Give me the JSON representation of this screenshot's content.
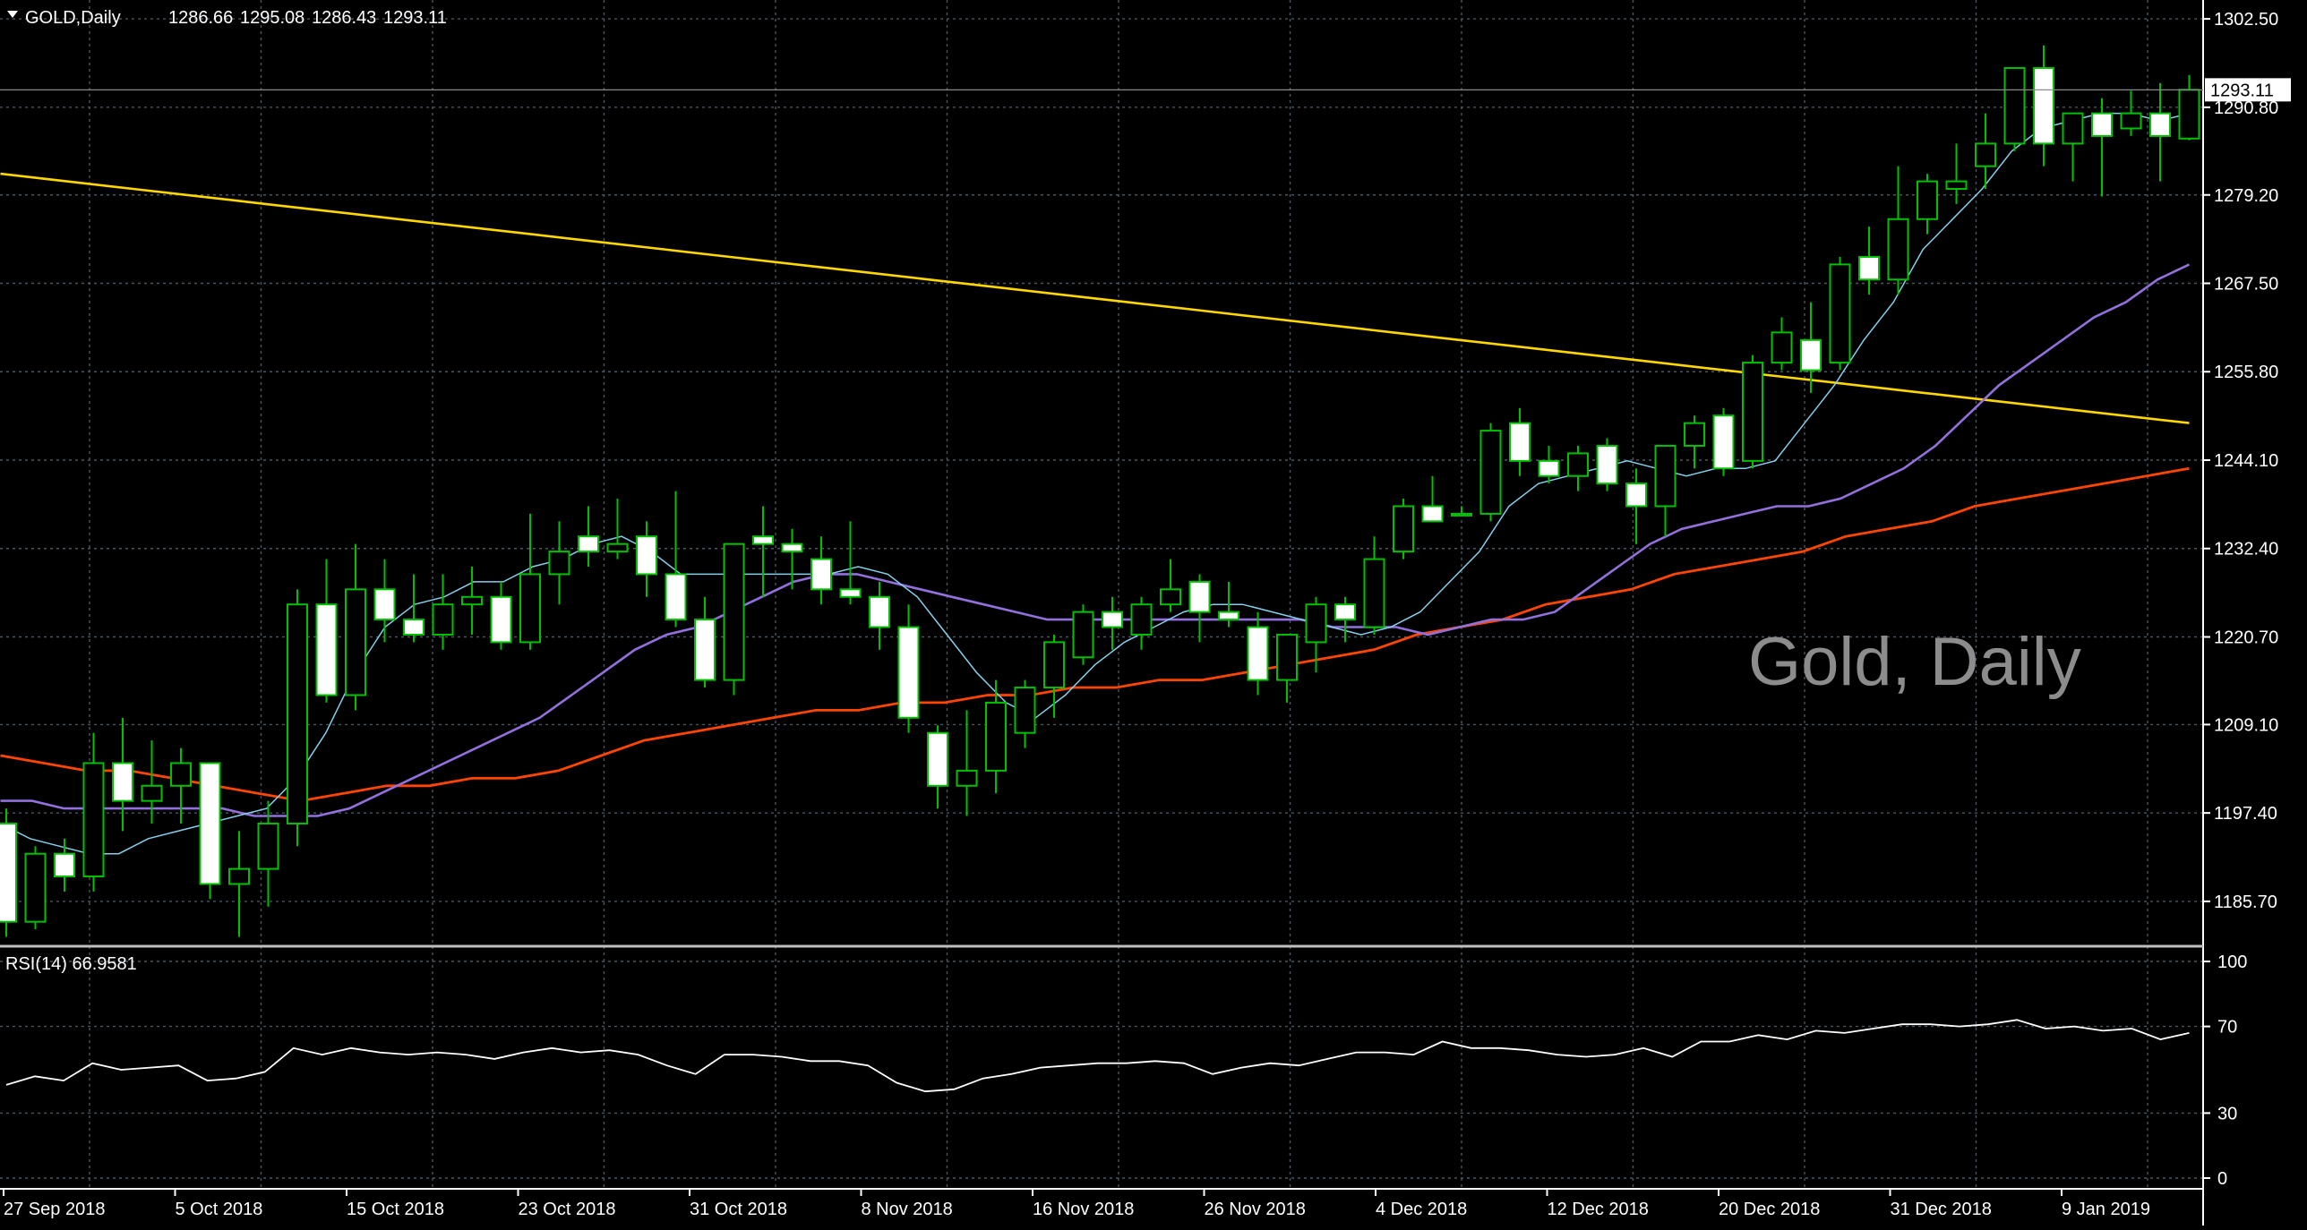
{
  "header": {
    "symbol_label": "GOLD,Daily",
    "open": "1286.66",
    "high": "1295.08",
    "low": "1286.43",
    "close": "1293.11",
    "watermark": "Gold, Daily"
  },
  "price_axis": {
    "ticks": [
      "1302.50",
      "1290.80",
      "1279.20",
      "1267.50",
      "1255.80",
      "1244.10",
      "1232.40",
      "1220.70",
      "1209.10",
      "1197.40",
      "1185.70"
    ],
    "current_price_label": "1293.11"
  },
  "rsi_panel": {
    "label": "RSI(14) 66.9581",
    "ticks": [
      "100",
      "70",
      "30",
      "0"
    ]
  },
  "time_axis": {
    "labels": [
      "27 Sep 2018",
      "5 Oct 2018",
      "15 Oct 2018",
      "23 Oct 2018",
      "31 Oct 2018",
      "8 Nov 2018",
      "16 Nov 2018",
      "26 Nov 2018",
      "4 Dec 2018",
      "12 Dec 2018",
      "20 Dec 2018",
      "31 Dec 2018",
      "9 Jan 2019"
    ]
  },
  "colors": {
    "background": "#000000",
    "grid": "#4a5560",
    "bull_candle": "#000000",
    "bear_candle": "#ffffff",
    "wick": "#00c000",
    "ma_fast": "#87ceeb",
    "ma_mid": "#9370db",
    "ma_slow": "#ff4500",
    "ma_long": "#ffd700",
    "rsi_line": "#ffffff"
  },
  "chart_data": {
    "type": "candlestick",
    "title": "GOLD,Daily",
    "ylim": [
      1180.0,
      1305.0
    ],
    "rsi_ylim": [
      0,
      100
    ],
    "candles": [
      {
        "o": 1196,
        "h": 1198,
        "l": 1181,
        "c": 1183
      },
      {
        "o": 1183,
        "h": 1193,
        "l": 1182,
        "c": 1192
      },
      {
        "o": 1192,
        "h": 1194,
        "l": 1187,
        "c": 1189
      },
      {
        "o": 1189,
        "h": 1208,
        "l": 1187,
        "c": 1204
      },
      {
        "o": 1204,
        "h": 1210,
        "l": 1195,
        "c": 1199
      },
      {
        "o": 1199,
        "h": 1207,
        "l": 1196,
        "c": 1201
      },
      {
        "o": 1201,
        "h": 1206,
        "l": 1196,
        "c": 1204
      },
      {
        "o": 1204,
        "h": 1204,
        "l": 1186,
        "c": 1188
      },
      {
        "o": 1188,
        "h": 1195,
        "l": 1181,
        "c": 1190
      },
      {
        "o": 1190,
        "h": 1199,
        "l": 1185,
        "c": 1196
      },
      {
        "o": 1196,
        "h": 1227,
        "l": 1193,
        "c": 1225
      },
      {
        "o": 1225,
        "h": 1231,
        "l": 1212,
        "c": 1213
      },
      {
        "o": 1213,
        "h": 1233,
        "l": 1211,
        "c": 1227
      },
      {
        "o": 1227,
        "h": 1231,
        "l": 1220,
        "c": 1223
      },
      {
        "o": 1223,
        "h": 1229,
        "l": 1220,
        "c": 1221
      },
      {
        "o": 1221,
        "h": 1229,
        "l": 1219,
        "c": 1225
      },
      {
        "o": 1225,
        "h": 1230,
        "l": 1221,
        "c": 1226
      },
      {
        "o": 1226,
        "h": 1228,
        "l": 1219,
        "c": 1220
      },
      {
        "o": 1220,
        "h": 1237,
        "l": 1219,
        "c": 1229
      },
      {
        "o": 1229,
        "h": 1236,
        "l": 1225,
        "c": 1232
      },
      {
        "o": 1234,
        "h": 1238,
        "l": 1230,
        "c": 1232
      },
      {
        "o": 1232,
        "h": 1239,
        "l": 1231,
        "c": 1233
      },
      {
        "o": 1234,
        "h": 1236,
        "l": 1226,
        "c": 1229
      },
      {
        "o": 1229,
        "h": 1240,
        "l": 1222,
        "c": 1223
      },
      {
        "o": 1223,
        "h": 1226,
        "l": 1214,
        "c": 1215
      },
      {
        "o": 1215,
        "h": 1233,
        "l": 1213,
        "c": 1233
      },
      {
        "o": 1234,
        "h": 1238,
        "l": 1226,
        "c": 1233
      },
      {
        "o": 1233,
        "h": 1235,
        "l": 1227,
        "c": 1232
      },
      {
        "o": 1231,
        "h": 1234,
        "l": 1225,
        "c": 1227
      },
      {
        "o": 1227,
        "h": 1236,
        "l": 1225,
        "c": 1226
      },
      {
        "o": 1226,
        "h": 1228,
        "l": 1219,
        "c": 1222
      },
      {
        "o": 1222,
        "h": 1225,
        "l": 1208,
        "c": 1210
      },
      {
        "o": 1208,
        "h": 1209,
        "l": 1198,
        "c": 1201
      },
      {
        "o": 1201,
        "h": 1211,
        "l": 1197,
        "c": 1203
      },
      {
        "o": 1203,
        "h": 1215,
        "l": 1200,
        "c": 1212
      },
      {
        "o": 1208,
        "h": 1215,
        "l": 1206,
        "c": 1214
      },
      {
        "o": 1214,
        "h": 1221,
        "l": 1210,
        "c": 1220
      },
      {
        "o": 1218,
        "h": 1225,
        "l": 1217,
        "c": 1224
      },
      {
        "o": 1224,
        "h": 1226,
        "l": 1219,
        "c": 1222
      },
      {
        "o": 1221,
        "h": 1226,
        "l": 1219,
        "c": 1225
      },
      {
        "o": 1225,
        "h": 1231,
        "l": 1224,
        "c": 1227
      },
      {
        "o": 1228,
        "h": 1229,
        "l": 1220,
        "c": 1224
      },
      {
        "o": 1224,
        "h": 1228,
        "l": 1222,
        "c": 1223
      },
      {
        "o": 1222,
        "h": 1224,
        "l": 1213,
        "c": 1215
      },
      {
        "o": 1215,
        "h": 1221,
        "l": 1212,
        "c": 1221
      },
      {
        "o": 1220,
        "h": 1226,
        "l": 1216,
        "c": 1225
      },
      {
        "o": 1225,
        "h": 1226,
        "l": 1220,
        "c": 1223
      },
      {
        "o": 1222,
        "h": 1234,
        "l": 1221,
        "c": 1231
      },
      {
        "o": 1232,
        "h": 1239,
        "l": 1231,
        "c": 1238
      },
      {
        "o": 1238,
        "h": 1242,
        "l": 1236,
        "c": 1236
      },
      {
        "o": 1237,
        "h": 1238,
        "l": 1237,
        "c": 1237
      },
      {
        "o": 1237,
        "h": 1249,
        "l": 1236,
        "c": 1248
      },
      {
        "o": 1249,
        "h": 1251,
        "l": 1242,
        "c": 1244
      },
      {
        "o": 1244,
        "h": 1246,
        "l": 1241,
        "c": 1242
      },
      {
        "o": 1242,
        "h": 1246,
        "l": 1240,
        "c": 1245
      },
      {
        "o": 1246,
        "h": 1247,
        "l": 1240,
        "c": 1241
      },
      {
        "o": 1241,
        "h": 1243,
        "l": 1233,
        "c": 1238
      },
      {
        "o": 1238,
        "h": 1246,
        "l": 1234,
        "c": 1246
      },
      {
        "o": 1246,
        "h": 1250,
        "l": 1243,
        "c": 1249
      },
      {
        "o": 1250,
        "h": 1251,
        "l": 1242,
        "c": 1243
      },
      {
        "o": 1244,
        "h": 1258,
        "l": 1243,
        "c": 1257
      },
      {
        "o": 1257,
        "h": 1263,
        "l": 1256,
        "c": 1261
      },
      {
        "o": 1260,
        "h": 1265,
        "l": 1253,
        "c": 1256
      },
      {
        "o": 1257,
        "h": 1271,
        "l": 1256,
        "c": 1270
      },
      {
        "o": 1271,
        "h": 1275,
        "l": 1266,
        "c": 1268
      },
      {
        "o": 1268,
        "h": 1283,
        "l": 1266,
        "c": 1276
      },
      {
        "o": 1276,
        "h": 1282,
        "l": 1274,
        "c": 1281
      },
      {
        "o": 1280,
        "h": 1286,
        "l": 1278,
        "c": 1281
      },
      {
        "o": 1283,
        "h": 1290,
        "l": 1280,
        "c": 1286
      },
      {
        "o": 1286,
        "h": 1296,
        "l": 1285,
        "c": 1296
      },
      {
        "o": 1296,
        "h": 1299,
        "l": 1283,
        "c": 1286
      },
      {
        "o": 1286,
        "h": 1290,
        "l": 1281,
        "c": 1290
      },
      {
        "o": 1290,
        "h": 1292,
        "l": 1279,
        "c": 1287
      },
      {
        "o": 1288,
        "h": 1293,
        "l": 1287,
        "c": 1290
      },
      {
        "o": 1290,
        "h": 1294,
        "l": 1281,
        "c": 1287
      },
      {
        "o": 1286.66,
        "h": 1295.08,
        "l": 1286.43,
        "c": 1293.11
      }
    ],
    "ma_fast": [
      1196,
      1194,
      1193,
      1192,
      1192,
      1194,
      1195,
      1196,
      1197,
      1198,
      1202,
      1208,
      1216,
      1222,
      1225,
      1226,
      1228,
      1228,
      1230,
      1231,
      1233,
      1234,
      1232,
      1229,
      1229,
      1229,
      1229,
      1229,
      1229,
      1230,
      1229,
      1226,
      1221,
      1216,
      1212,
      1210,
      1213,
      1217,
      1220,
      1222,
      1224,
      1225,
      1225,
      1224,
      1223,
      1222,
      1221,
      1222,
      1224,
      1228,
      1232,
      1238,
      1241,
      1242,
      1243,
      1244,
      1243,
      1242,
      1243,
      1243,
      1244,
      1249,
      1254,
      1260,
      1265,
      1272,
      1276,
      1280,
      1285,
      1288,
      1289,
      1290,
      1290,
      1289,
      1290
    ],
    "ma_mid": [
      1199,
      1199,
      1198,
      1198,
      1198,
      1198,
      1198,
      1198,
      1197,
      1197,
      1197,
      1198,
      1200,
      1202,
      1204,
      1206,
      1208,
      1210,
      1213,
      1216,
      1219,
      1221,
      1222,
      1224,
      1226,
      1228,
      1229,
      1229,
      1228,
      1227,
      1226,
      1225,
      1224,
      1223,
      1223,
      1223,
      1223,
      1223,
      1223,
      1223,
      1223,
      1223,
      1222,
      1222,
      1222,
      1221,
      1222,
      1223,
      1223,
      1224,
      1227,
      1230,
      1233,
      1235,
      1236,
      1237,
      1238,
      1238,
      1239,
      1241,
      1243,
      1246,
      1250,
      1254,
      1257,
      1260,
      1263,
      1265,
      1268,
      1270
    ],
    "ma_slow": [
      1205,
      1204,
      1203,
      1203,
      1202,
      1201,
      1200,
      1199,
      1200,
      1201,
      1201,
      1202,
      1202,
      1203,
      1205,
      1207,
      1208,
      1209,
      1210,
      1211,
      1211,
      1212,
      1212,
      1213,
      1213,
      1214,
      1214,
      1215,
      1215,
      1216,
      1217,
      1218,
      1219,
      1221,
      1222,
      1223,
      1225,
      1226,
      1227,
      1229,
      1230,
      1231,
      1232,
      1234,
      1235,
      1236,
      1238,
      1239,
      1240,
      1241,
      1242,
      1243
    ],
    "ma_long": [
      1282,
      1281,
      1280,
      1279,
      1278,
      1277,
      1276,
      1275,
      1274,
      1273,
      1272,
      1271,
      1270,
      1269,
      1268,
      1267,
      1266,
      1265,
      1264,
      1263,
      1262,
      1261,
      1260,
      1259,
      1258,
      1257,
      1256,
      1255,
      1254,
      1253,
      1252,
      1251,
      1250,
      1249
    ],
    "rsi": [
      43,
      47,
      45,
      53,
      50,
      51,
      52,
      45,
      46,
      49,
      60,
      57,
      60,
      58,
      57,
      58,
      57,
      55,
      58,
      60,
      58,
      59,
      57,
      52,
      48,
      57,
      57,
      56,
      54,
      54,
      52,
      44,
      40,
      41,
      46,
      48,
      51,
      52,
      53,
      53,
      54,
      53,
      48,
      51,
      53,
      52,
      55,
      58,
      58,
      57,
      63,
      60,
      60,
      59,
      57,
      56,
      57,
      60,
      56,
      63,
      63,
      66,
      64,
      68,
      67,
      69,
      71,
      71,
      70,
      71,
      73,
      69,
      70,
      68,
      69,
      64,
      67
    ]
  }
}
